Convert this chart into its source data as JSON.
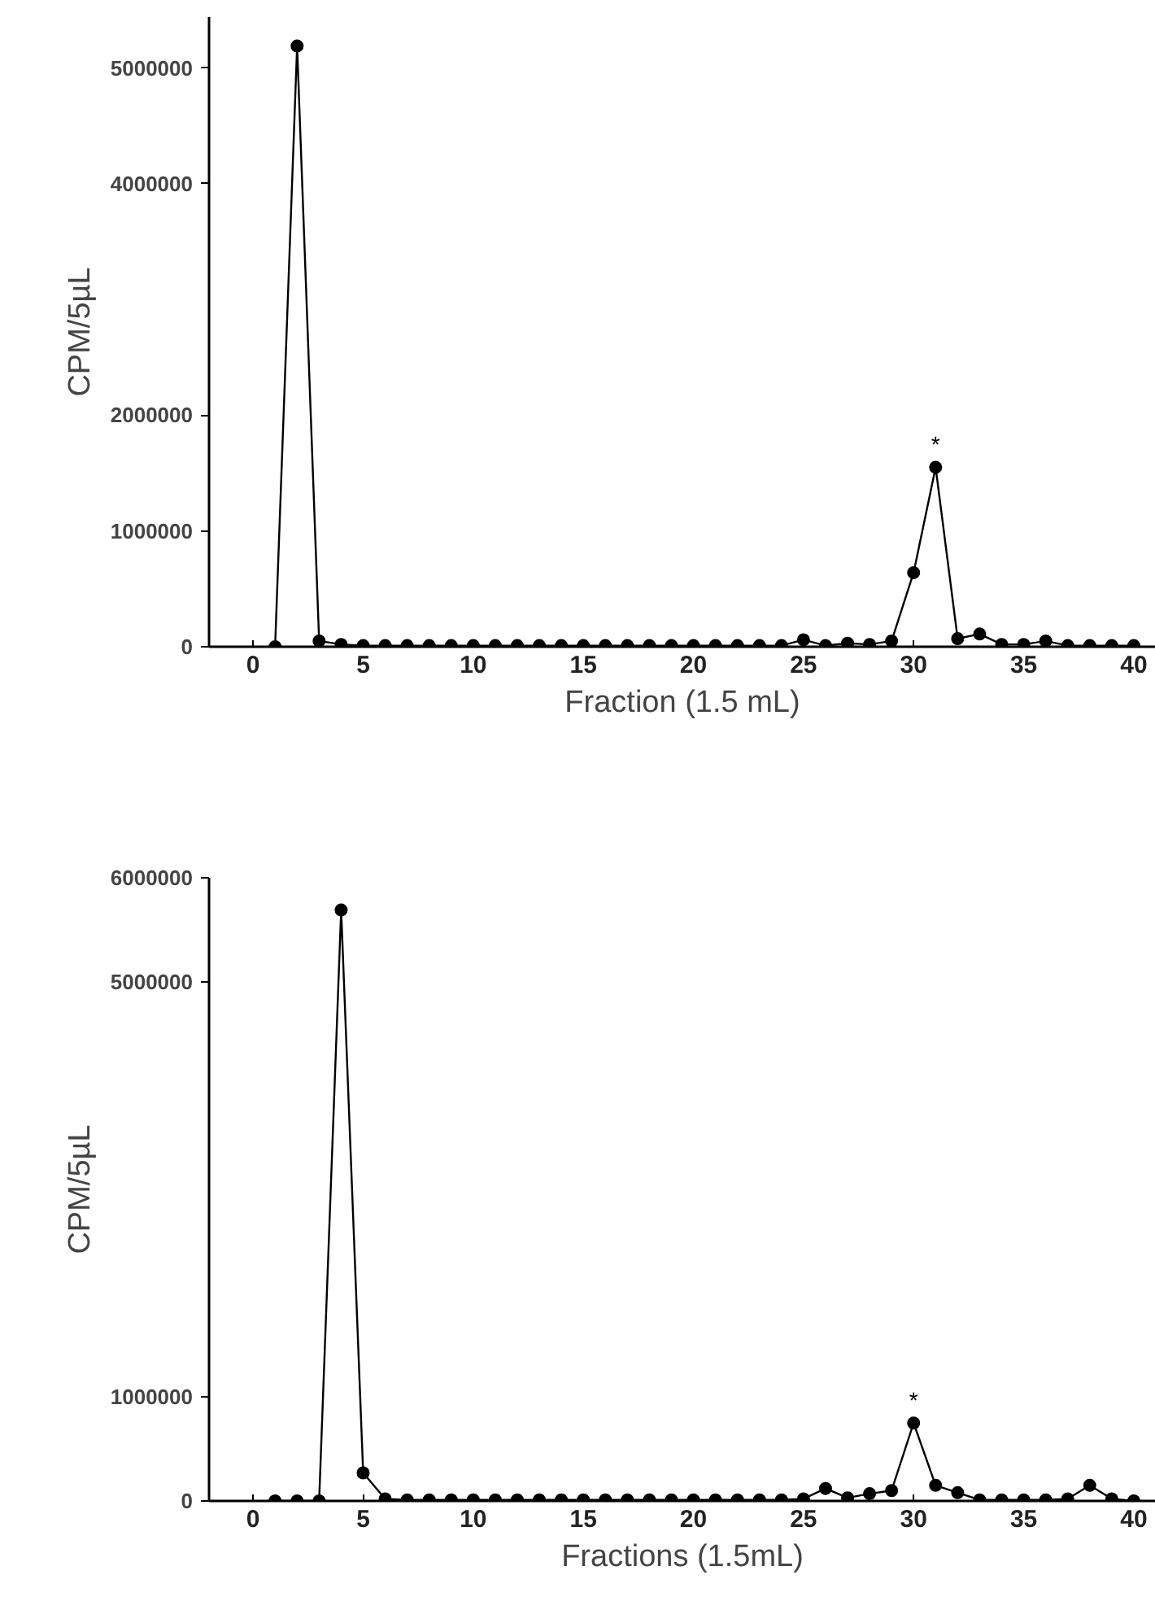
{
  "chart_data": [
    {
      "type": "line",
      "x": [
        1,
        2,
        3,
        4,
        5,
        6,
        7,
        8,
        9,
        10,
        11,
        12,
        13,
        14,
        15,
        16,
        17,
        18,
        19,
        20,
        21,
        22,
        23,
        24,
        25,
        26,
        27,
        28,
        29,
        30,
        31,
        32,
        33,
        34,
        35,
        36,
        37,
        38,
        39,
        40
      ],
      "values": [
        0,
        5190000,
        50000,
        20000,
        10000,
        10000,
        10000,
        10000,
        10000,
        10000,
        10000,
        10000,
        10000,
        10000,
        10000,
        10000,
        10000,
        10000,
        10000,
        10000,
        10000,
        10000,
        10000,
        10000,
        60000,
        10000,
        30000,
        20000,
        50000,
        640000,
        1550000,
        70000,
        110000,
        20000,
        20000,
        50000,
        10000,
        10000,
        10000,
        10000
      ],
      "color": "#000000",
      "marker": "circle",
      "line_style": "solid",
      "grid": false,
      "xlim": [
        -2,
        41
      ],
      "xticks": [
        0,
        5,
        10,
        15,
        20,
        25,
        30,
        35,
        40
      ],
      "ylim": [
        0,
        5440000
      ],
      "yticks": [
        0,
        1000000,
        2000000,
        4000000,
        5000000
      ],
      "xlabel": "Fraction (1.5 mL)",
      "ylabel": "CPM/5µL",
      "annotations": [
        {
          "text": "*",
          "x": 31,
          "y": 1550000
        }
      ]
    },
    {
      "type": "line",
      "x": [
        1,
        2,
        3,
        4,
        5,
        6,
        7,
        8,
        9,
        10,
        11,
        12,
        13,
        14,
        15,
        16,
        17,
        18,
        19,
        20,
        21,
        22,
        23,
        24,
        25,
        26,
        27,
        28,
        29,
        30,
        31,
        32,
        33,
        34,
        35,
        36,
        37,
        38,
        39,
        40
      ],
      "values": [
        0,
        0,
        0,
        5690000,
        270000,
        20000,
        10000,
        10000,
        10000,
        10000,
        10000,
        10000,
        10000,
        10000,
        10000,
        10000,
        10000,
        10000,
        10000,
        10000,
        10000,
        10000,
        10000,
        10000,
        20000,
        120000,
        30000,
        70000,
        100000,
        750000,
        150000,
        80000,
        10000,
        10000,
        10000,
        10000,
        20000,
        150000,
        20000,
        0
      ],
      "color": "#000000",
      "marker": "circle",
      "line_style": "solid",
      "grid": false,
      "xlim": [
        -2,
        41
      ],
      "xticks": [
        0,
        5,
        10,
        15,
        20,
        25,
        30,
        35,
        40
      ],
      "ylim": [
        0,
        6000000
      ],
      "yticks": [
        0,
        1000000,
        5000000,
        6000000
      ],
      "xlabel": "Fractions (1.5mL)",
      "ylabel": "CPM/5µL",
      "annotations": [
        {
          "text": "*",
          "x": 30,
          "y": 750000
        }
      ]
    }
  ]
}
